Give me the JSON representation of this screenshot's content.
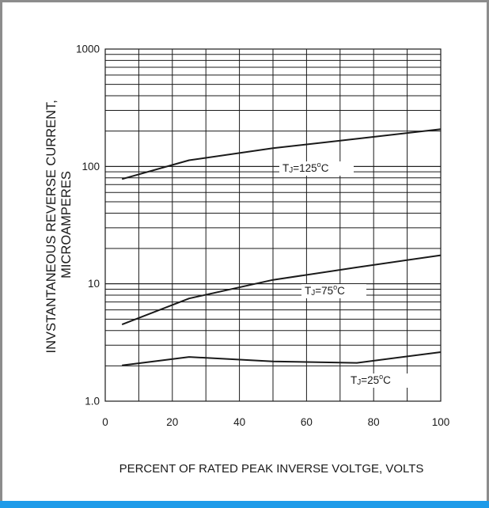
{
  "colors": {
    "frame": "#8c8c8c",
    "accent_bar": "#1e9be9",
    "grid": "#1a1a1a",
    "curve": "#1a1a1a"
  },
  "chart_data": {
    "type": "line",
    "title": "",
    "xlabel": "PERCENT OF RATED PEAK INVERSE VOLTGE, VOLTS",
    "ylabel_lines": [
      "INVSTANTANEOUS REVERSE CURRENT,",
      "MICROAMPERES"
    ],
    "xlim": [
      0,
      100
    ],
    "ylim": [
      1.0,
      1000
    ],
    "yscale": "log",
    "grid": true,
    "x_ticks": [
      {
        "value": 0,
        "label": "0"
      },
      {
        "value": 20,
        "label": "20"
      },
      {
        "value": 40,
        "label": "40"
      },
      {
        "value": 60,
        "label": "60"
      },
      {
        "value": 80,
        "label": "80"
      },
      {
        "value": 100,
        "label": "100"
      }
    ],
    "y_ticks": [
      {
        "value": 1,
        "label": "1.0"
      },
      {
        "value": 10,
        "label": "10"
      },
      {
        "value": 100,
        "label": "100"
      },
      {
        "value": 1000,
        "label": "1000"
      }
    ],
    "series": [
      {
        "name": "TJ=125°C",
        "label_main": "T",
        "label_sub": "J",
        "label_rest": "=125",
        "label_deg": "o",
        "label_unit": "C",
        "x": [
          5,
          25,
          50,
          75,
          100
        ],
        "y": [
          78,
          113,
          143,
          172,
          208
        ]
      },
      {
        "name": "TJ=75°C",
        "label_main": "T",
        "label_sub": "J",
        "label_rest": "=75",
        "label_deg": "o",
        "label_unit": "C",
        "x": [
          5,
          25,
          50,
          75,
          100
        ],
        "y": [
          4.5,
          7.5,
          10.8,
          13.8,
          17.5
        ]
      },
      {
        "name": "TJ=25°C",
        "label_main": "T",
        "label_sub": "J",
        "label_rest": "=25",
        "label_deg": "o",
        "label_unit": "C",
        "x": [
          5,
          25,
          50,
          75,
          100
        ],
        "y": [
          2.02,
          2.38,
          2.18,
          2.12,
          2.62
        ]
      }
    ]
  }
}
